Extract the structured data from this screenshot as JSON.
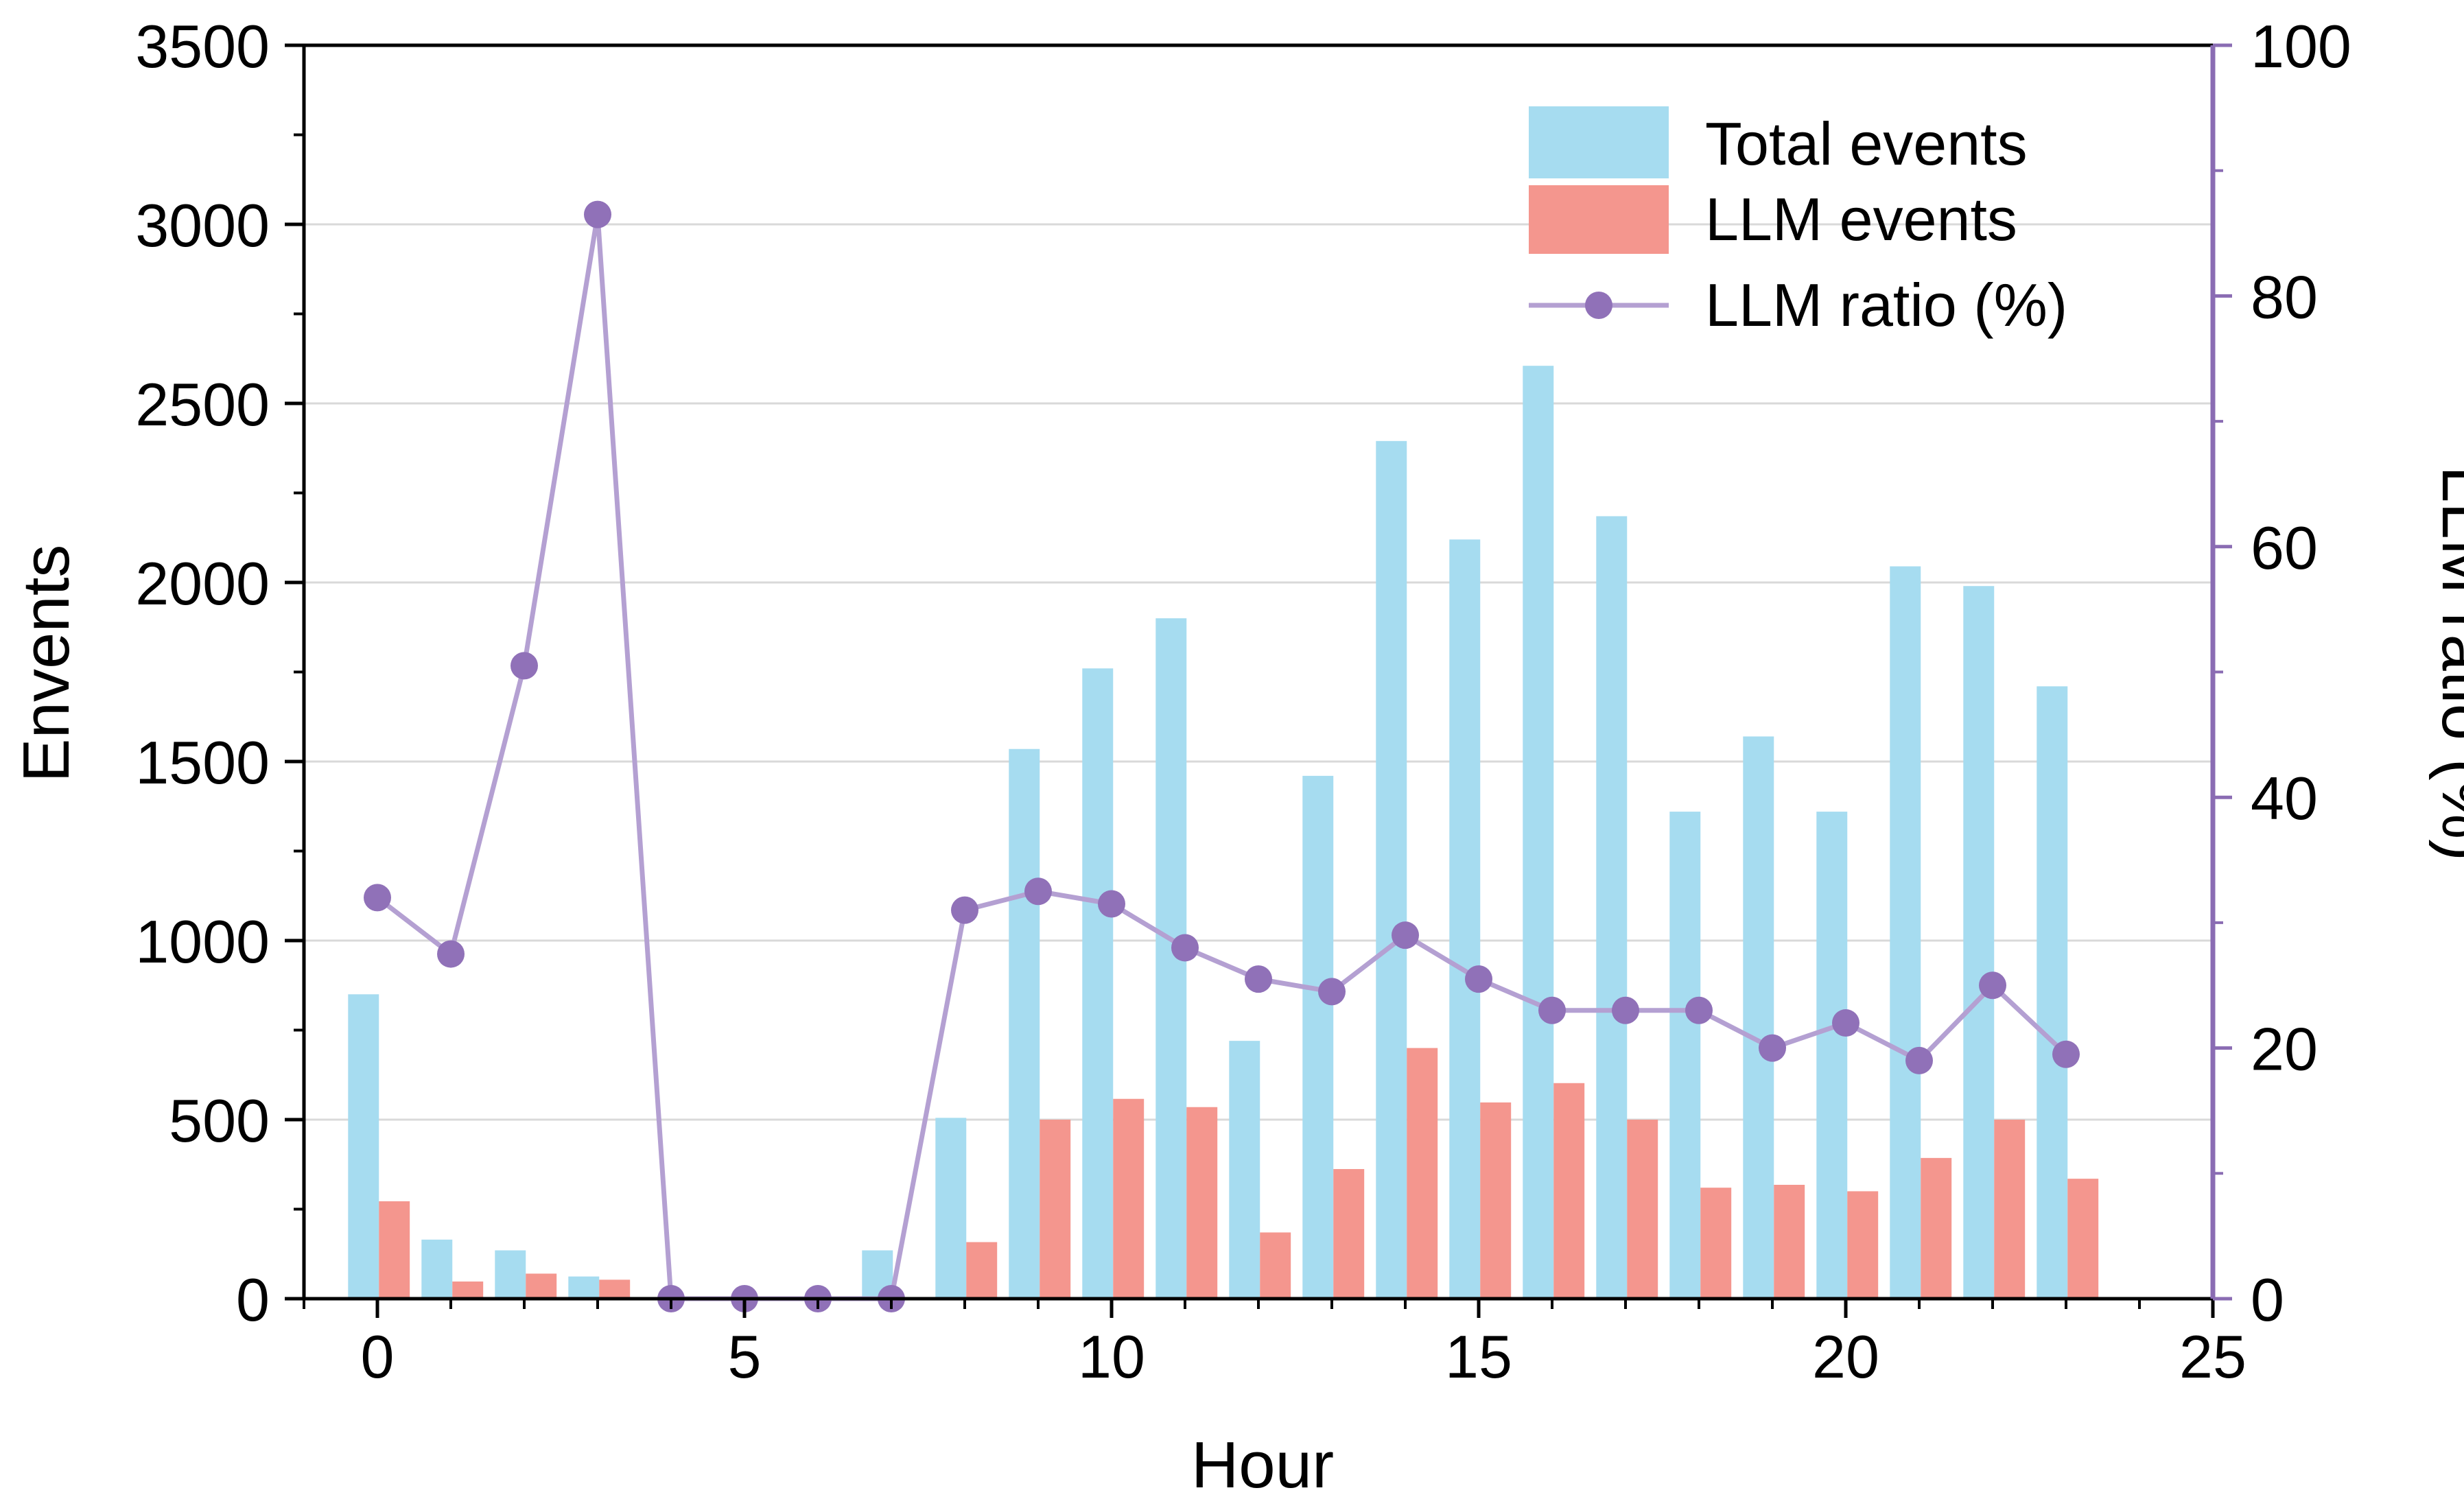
{
  "chart_data": {
    "type": "bar",
    "xlabel": "Hour",
    "ylabel_left": "Envents",
    "ylabel_right": "LLM ratio (%)",
    "xlim": [
      -1,
      25
    ],
    "ylim_left": [
      0,
      3500
    ],
    "ylim_right": [
      0,
      100
    ],
    "x_ticks": [
      0,
      5,
      10,
      15,
      20,
      25
    ],
    "y_left_ticks": [
      0,
      500,
      1000,
      1500,
      2000,
      2500,
      3000,
      3500
    ],
    "y_right_ticks": [
      0,
      20,
      40,
      60,
      80,
      100
    ],
    "grid": "horizontal",
    "legend_position": "top-right",
    "hours": [
      0,
      1,
      2,
      3,
      4,
      5,
      6,
      7,
      8,
      9,
      10,
      11,
      12,
      13,
      14,
      15,
      16,
      17,
      18,
      19,
      20,
      21,
      22,
      23
    ],
    "series": [
      {
        "name": "Total events",
        "axis": "left",
        "kind": "bar",
        "color": "#a6dcf0",
        "values": [
          850,
          165,
          135,
          62,
          0,
          0,
          0,
          135,
          505,
          1535,
          1760,
          1900,
          720,
          1460,
          2395,
          2120,
          2605,
          2185,
          1360,
          1570,
          1360,
          2045,
          1990,
          1710
        ]
      },
      {
        "name": "LLM events",
        "axis": "left",
        "kind": "bar",
        "color": "#f4968e",
        "values": [
          272,
          48,
          70,
          53,
          0,
          0,
          0,
          0,
          158,
          500,
          558,
          535,
          185,
          362,
          700,
          548,
          602,
          500,
          310,
          318,
          300,
          393,
          500,
          335
        ]
      },
      {
        "name": "LLM ratio (%)",
        "axis": "right",
        "kind": "line",
        "color": "#9071b8",
        "line_color": "#b4a0d2",
        "values": [
          32,
          27.5,
          50.5,
          86.5,
          0,
          0,
          0,
          0,
          31,
          32.5,
          31.5,
          28,
          25.5,
          24.5,
          29,
          25.5,
          23,
          23,
          23,
          20,
          22,
          19,
          25,
          19.5
        ]
      }
    ]
  }
}
